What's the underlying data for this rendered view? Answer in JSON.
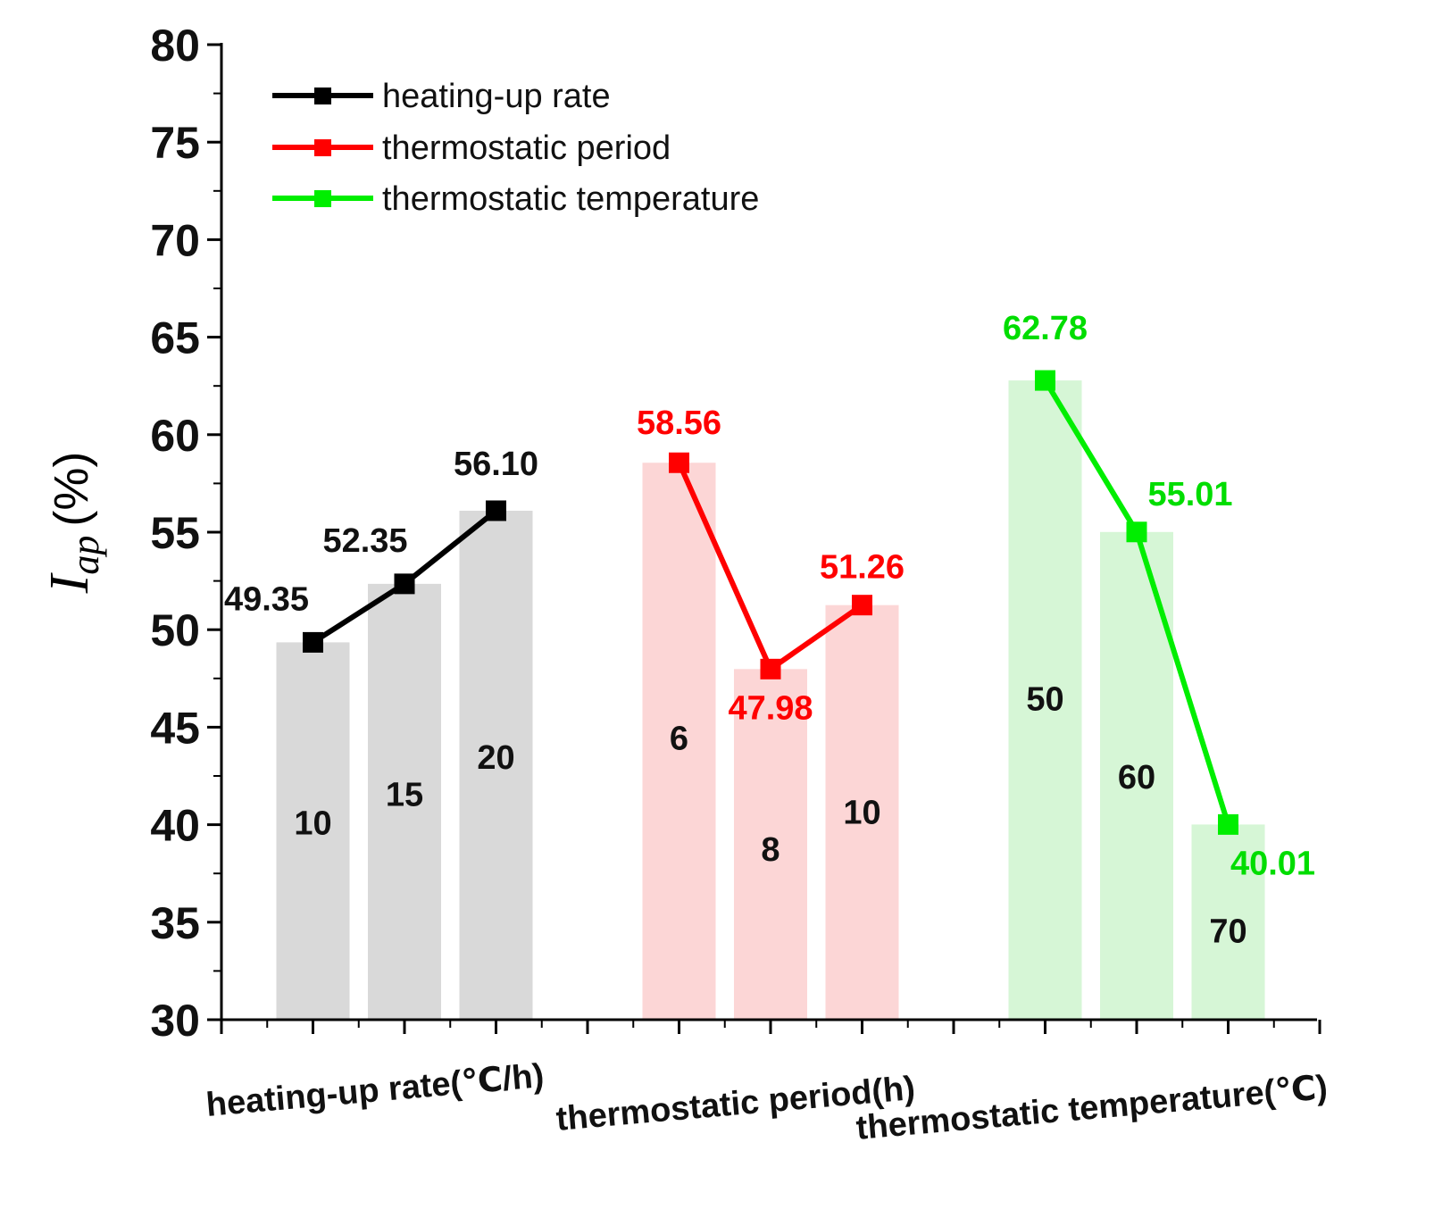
{
  "chart_data": {
    "type": "bar",
    "title": "",
    "ylabel_main": "I",
    "ylabel_sub": "ap",
    "ylabel_unit": "(%)",
    "ylim": [
      30,
      80
    ],
    "yticks": [
      30,
      35,
      40,
      45,
      50,
      55,
      60,
      65,
      70,
      75,
      80
    ],
    "grid": false,
    "legend": [
      {
        "name": "heating-up rate",
        "color": "#000000"
      },
      {
        "name": "thermostatic period",
        "color": "#ff0000"
      },
      {
        "name": "thermostatic temperature",
        "color": "#00ee00"
      }
    ],
    "groups": [
      {
        "label": "heating-up rate(℃/h)",
        "line_color": "#000000",
        "bar_color": "#d9d9d9",
        "label_color": "#111111",
        "categories": [
          "10",
          "15",
          "20"
        ],
        "values": [
          49.35,
          52.35,
          56.1
        ],
        "value_labels": [
          "49.35",
          "52.35",
          "56.10"
        ]
      },
      {
        "label": "thermostatic period(h)",
        "line_color": "#ff0000",
        "bar_color": "#fcd6d6",
        "label_color": "#ff0000",
        "categories": [
          "6",
          "8",
          "10"
        ],
        "values": [
          58.56,
          47.98,
          51.26
        ],
        "value_labels": [
          "58.56",
          "47.98",
          "51.26"
        ]
      },
      {
        "label": "thermostatic temperature(℃)",
        "line_color": "#00ee00",
        "bar_color": "#d6f6d6",
        "label_color": "#00dd00",
        "categories": [
          "50",
          "60",
          "70"
        ],
        "values": [
          62.78,
          55.01,
          40.01
        ],
        "value_labels": [
          "62.78",
          "55.01",
          "40.01"
        ]
      }
    ]
  }
}
